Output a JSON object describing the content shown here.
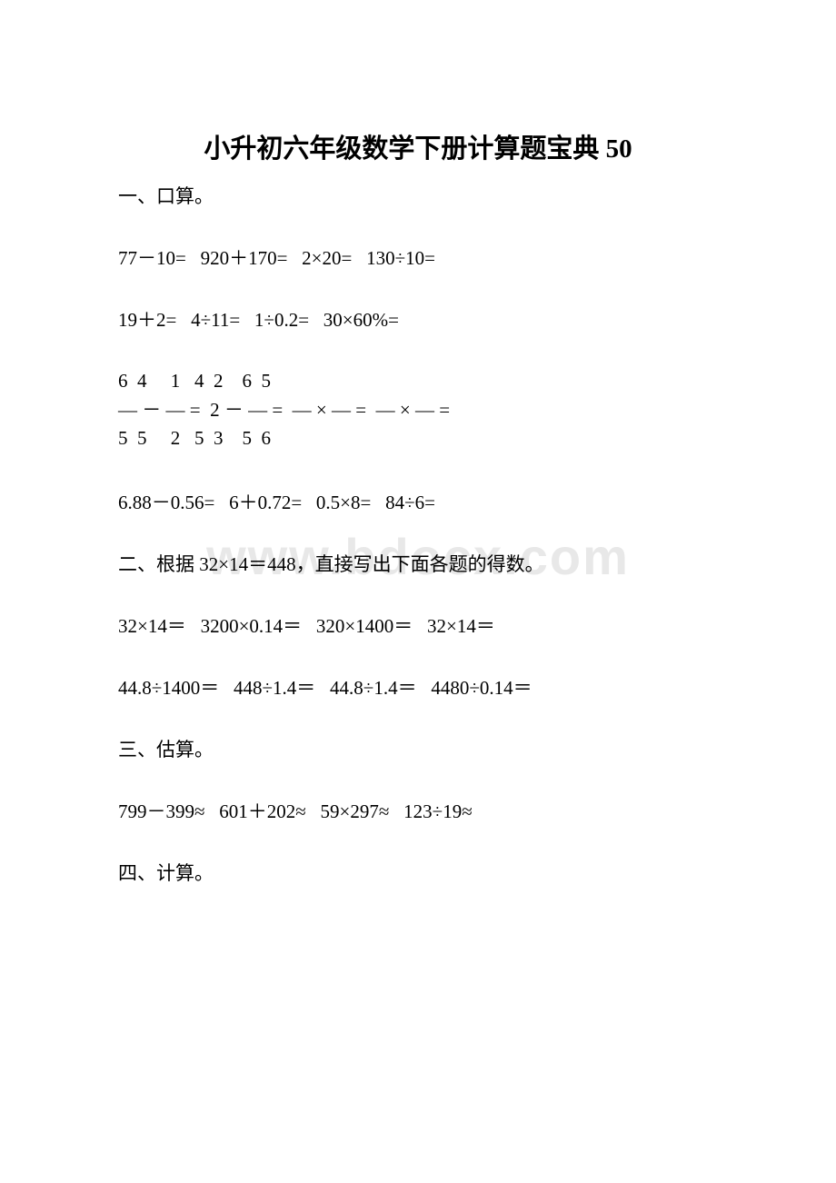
{
  "title": "小升初六年级数学下册计算题宝典 50",
  "watermark": "www.bdocx.com",
  "sections": {
    "s1": {
      "heading": "一、口算。",
      "row1": "77－10=   920＋170=   2×20=   130÷10=",
      "row2": "19＋2=   4÷11=   1÷0.2=   30×60%=",
      "frac_top": "6  4     1   4  2    6  5",
      "frac_mid": "— － — =  2 － — =  — × — =  — × — =",
      "frac_bot": "5  5     2   5  3    5  6",
      "row4": "6.88－0.56=   6＋0.72=   0.5×8=   84÷6="
    },
    "s2": {
      "heading": "二、根据 32×14＝448，直接写出下面各题的得数。",
      "row1": "32×14＝   3200×0.14＝   320×1400＝   32×14＝",
      "row2": "44.8÷1400＝   448÷1.4＝   44.8÷1.4＝   4480÷0.14＝"
    },
    "s3": {
      "heading": "三、估算。",
      "row1": "799－399≈   601＋202≈   59×297≈   123÷19≈"
    },
    "s4": {
      "heading": "四、计算。"
    }
  },
  "styles": {
    "background_color": "#ffffff",
    "text_color": "#000000",
    "watermark_color": "#e8e8e8",
    "title_fontsize": 29,
    "body_fontsize": 21,
    "watermark_fontsize": 56
  }
}
